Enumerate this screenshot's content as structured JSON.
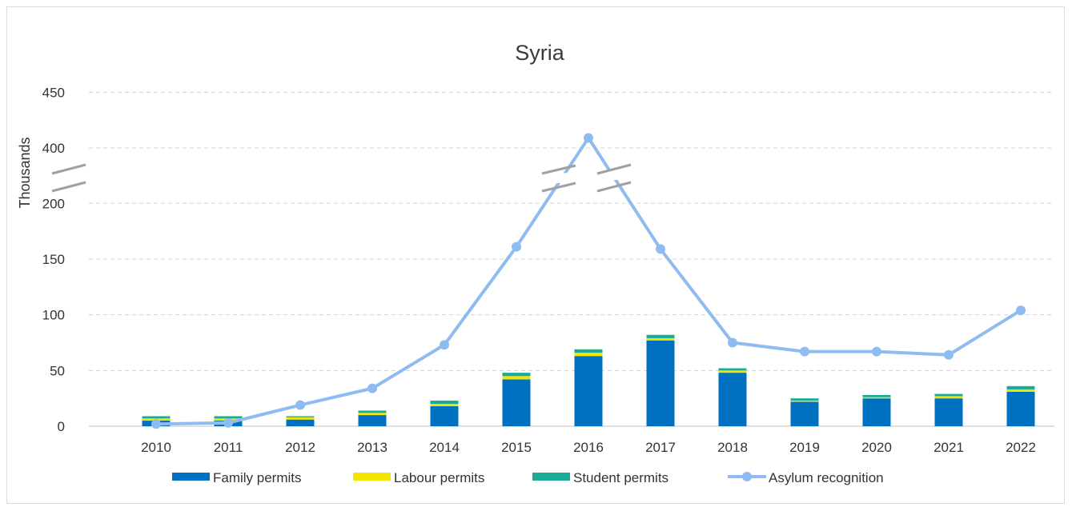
{
  "chart_data": {
    "type": "bar",
    "title": "Syria",
    "xlabel": "",
    "ylabel": "Thousands",
    "categories": [
      "2010",
      "2011",
      "2012",
      "2013",
      "2014",
      "2015",
      "2016",
      "2017",
      "2018",
      "2019",
      "2020",
      "2021",
      "2022"
    ],
    "y_ticks": [
      "0",
      "50",
      "100",
      "150",
      "200",
      "400",
      "450"
    ],
    "y_axis_break": [
      200,
      400
    ],
    "ylim": [
      0,
      450
    ],
    "grid": true,
    "legend_position": "bottom",
    "series": [
      {
        "name": "Family permits",
        "type": "bar",
        "stack": "permits",
        "color": "#0070c0",
        "values": [
          5,
          5,
          6,
          10,
          18,
          42,
          63,
          77,
          48,
          22,
          25,
          25,
          31
        ]
      },
      {
        "name": "Labour permits",
        "type": "bar",
        "stack": "permits",
        "color": "#f2e600",
        "values": [
          2,
          2,
          2,
          2,
          2,
          3,
          3,
          2,
          2,
          1,
          1,
          2,
          2
        ]
      },
      {
        "name": "Student permits",
        "type": "bar",
        "stack": "permits",
        "color": "#1aab97",
        "values": [
          2,
          2,
          1,
          2,
          3,
          3,
          3,
          3,
          2,
          2,
          2,
          2,
          3
        ]
      },
      {
        "name": "Asylum recognition",
        "type": "line",
        "color": "#8fbcf0",
        "values": [
          2,
          3,
          19,
          34,
          73,
          161,
          409,
          159,
          75,
          67,
          67,
          64,
          104
        ]
      }
    ]
  }
}
